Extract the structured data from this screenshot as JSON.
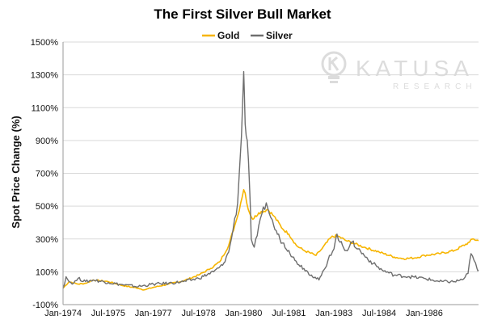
{
  "colors": {
    "gold": "#f7b500",
    "silver": "#6e6e6e",
    "grid": "#d9d9d9",
    "axis": "#999999",
    "watermark": "#d9d9d9"
  },
  "watermark": {
    "brand": "KATUSA",
    "sub": "RESEARCH",
    "icon": "lightbulb-k-icon"
  },
  "chart_data": {
    "type": "line",
    "title": "The First Silver Bull Market",
    "xlabel": "",
    "ylabel": "Spot Price Change (%)",
    "x_range": [
      1974.0,
      1987.8
    ],
    "ylim": [
      -100,
      1500
    ],
    "y_ticks": [
      -100,
      100,
      300,
      500,
      700,
      900,
      1100,
      1300,
      1500
    ],
    "y_tick_labels": [
      "-100%",
      "100%",
      "300%",
      "500%",
      "700%",
      "900%",
      "1100%",
      "1300%",
      "1500%"
    ],
    "x_ticks": [
      1974.0,
      1975.5,
      1977.0,
      1978.5,
      1980.0,
      1981.5,
      1983.0,
      1984.5,
      1986.0
    ],
    "x_tick_labels": [
      "Jan-1974",
      "Jul-1975",
      "Jan-1977",
      "Jul-1978",
      "Jan-1980",
      "Jul-1981",
      "Jan-1983",
      "Jul-1984",
      "Jan-1986"
    ],
    "grid": "horizontal",
    "legend_position": "top-center",
    "series": [
      {
        "name": "Gold",
        "color_key": "gold",
        "x": [
          1974.0,
          1974.2,
          1974.5,
          1974.75,
          1975.0,
          1975.5,
          1976.0,
          1976.5,
          1976.7,
          1977.0,
          1977.5,
          1978.0,
          1978.5,
          1978.9,
          1979.2,
          1979.5,
          1979.7,
          1979.8,
          1979.9,
          1980.0,
          1980.05,
          1980.15,
          1980.3,
          1980.5,
          1980.8,
          1981.0,
          1981.3,
          1981.5,
          1981.75,
          1982.0,
          1982.4,
          1982.6,
          1982.9,
          1983.1,
          1983.4,
          1983.7,
          1984.0,
          1984.5,
          1985.0,
          1985.3,
          1985.7,
          1986.0,
          1986.5,
          1987.0,
          1987.5,
          1987.6,
          1987.8
        ],
        "y": [
          0,
          40,
          25,
          30,
          50,
          40,
          15,
          0,
          -10,
          5,
          25,
          45,
          80,
          120,
          160,
          260,
          380,
          440,
          520,
          600,
          580,
          480,
          420,
          460,
          480,
          440,
          360,
          330,
          260,
          230,
          200,
          240,
          310,
          320,
          290,
          270,
          250,
          220,
          190,
          180,
          185,
          200,
          210,
          230,
          280,
          300,
          290
        ]
      },
      {
        "name": "Silver",
        "color_key": "silver",
        "x": [
          1974.0,
          1974.1,
          1974.2,
          1974.35,
          1974.5,
          1974.75,
          1975.0,
          1975.5,
          1976.0,
          1976.5,
          1977.0,
          1977.5,
          1978.0,
          1978.5,
          1979.0,
          1979.3,
          1979.5,
          1979.65,
          1979.8,
          1979.9,
          1979.95,
          1980.0,
          1980.05,
          1980.12,
          1980.2,
          1980.25,
          1980.35,
          1980.45,
          1980.6,
          1980.75,
          1980.9,
          1981.0,
          1981.2,
          1981.5,
          1981.7,
          1982.0,
          1982.25,
          1982.5,
          1982.7,
          1982.85,
          1983.0,
          1983.1,
          1983.2,
          1983.4,
          1983.6,
          1983.8,
          1984.0,
          1984.3,
          1984.6,
          1985.0,
          1985.5,
          1986.0,
          1986.5,
          1987.0,
          1987.3,
          1987.45,
          1987.55,
          1987.65,
          1987.75,
          1987.8
        ],
        "y": [
          0,
          70,
          40,
          30,
          60,
          40,
          50,
          35,
          20,
          10,
          25,
          30,
          40,
          60,
          100,
          140,
          220,
          360,
          520,
          850,
          1050,
          1320,
          1000,
          900,
          600,
          300,
          250,
          320,
          450,
          520,
          430,
          380,
          300,
          230,
          170,
          120,
          80,
          50,
          120,
          200,
          240,
          330,
          280,
          230,
          280,
          240,
          200,
          150,
          110,
          80,
          70,
          60,
          40,
          40,
          55,
          90,
          210,
          170,
          120,
          110
        ]
      }
    ]
  }
}
